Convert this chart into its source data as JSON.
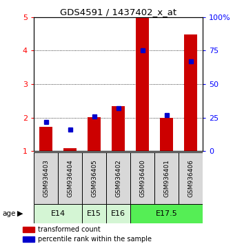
{
  "title": "GDS4591 / 1437402_x_at",
  "samples": [
    "GSM936403",
    "GSM936404",
    "GSM936405",
    "GSM936402",
    "GSM936400",
    "GSM936401",
    "GSM936406"
  ],
  "red_values": [
    1.73,
    1.1,
    2.02,
    2.35,
    5.0,
    2.0,
    4.48
  ],
  "blue_percentiles": [
    22,
    16,
    26,
    32,
    75,
    27,
    67
  ],
  "ylim_left": [
    1,
    5
  ],
  "ylim_right": [
    0,
    100
  ],
  "yticks_left": [
    1,
    2,
    3,
    4,
    5
  ],
  "yticks_right": [
    0,
    25,
    50,
    75,
    100
  ],
  "age_groups": [
    {
      "label": "E14",
      "start": 0,
      "end": 2,
      "color": "#d4f5d4"
    },
    {
      "label": "E15",
      "start": 2,
      "end": 3,
      "color": "#d4f5d4"
    },
    {
      "label": "E16",
      "start": 3,
      "end": 4,
      "color": "#d4f5d4"
    },
    {
      "label": "E17.5",
      "start": 4,
      "end": 7,
      "color": "#55ee55"
    }
  ],
  "red_color": "#cc0000",
  "blue_color": "#0000cc",
  "bg_color": "#d8d8d8",
  "plot_bg": "#ffffff",
  "legend_red": "transformed count",
  "legend_blue": "percentile rank within the sample",
  "title_fontsize": 9.5,
  "tick_fontsize": 8,
  "label_fontsize": 6.5,
  "age_fontsize": 8
}
